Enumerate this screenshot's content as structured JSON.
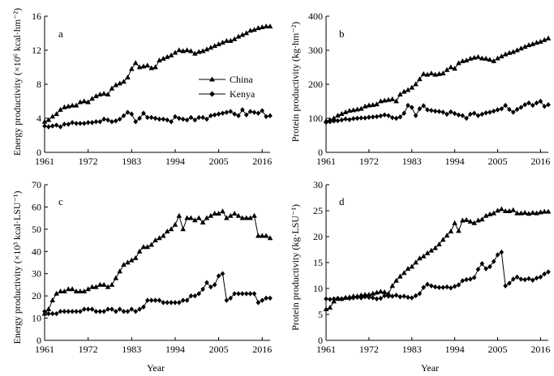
{
  "figure": {
    "x_axis_title": "Year",
    "legend": [
      {
        "label": "China",
        "marker": "triangle"
      },
      {
        "label": "Kenya",
        "marker": "diamond"
      }
    ],
    "x_ticks": [
      "1961",
      "1972",
      "1983",
      "1994",
      "2005",
      "2016"
    ]
  },
  "chart_data": [
    {
      "type": "line",
      "panel": "a",
      "ylabel": "Energy productivity (×10⁶ kcal·hm⁻²)",
      "xlim": [
        1961,
        2018
      ],
      "ylim": [
        0,
        16
      ],
      "yticks": [
        "0",
        "4",
        "8",
        "12",
        "16"
      ],
      "grid": false,
      "legend_position": "middle-right",
      "x": [
        1961,
        1962,
        1963,
        1964,
        1965,
        1966,
        1967,
        1968,
        1969,
        1970,
        1971,
        1972,
        1973,
        1974,
        1975,
        1976,
        1977,
        1978,
        1979,
        1980,
        1981,
        1982,
        1983,
        1984,
        1985,
        1986,
        1987,
        1988,
        1989,
        1990,
        1991,
        1992,
        1993,
        1994,
        1995,
        1996,
        1997,
        1998,
        1999,
        2000,
        2001,
        2002,
        2003,
        2004,
        2005,
        2006,
        2007,
        2008,
        2009,
        2010,
        2011,
        2012,
        2013,
        2014,
        2015,
        2016,
        2017,
        2018
      ],
      "series": [
        {
          "name": "China",
          "values": [
            3.6,
            3.8,
            4.2,
            4.5,
            5.0,
            5.3,
            5.4,
            5.5,
            5.5,
            5.9,
            6.0,
            5.9,
            6.3,
            6.6,
            6.8,
            6.9,
            6.8,
            7.5,
            7.9,
            8.1,
            8.3,
            8.8,
            9.8,
            10.5,
            10.0,
            10.1,
            10.2,
            9.9,
            10.0,
            10.8,
            11.0,
            11.2,
            11.4,
            11.7,
            12.0,
            11.9,
            12.0,
            11.9,
            11.6,
            11.8,
            11.9,
            12.1,
            12.3,
            12.5,
            12.7,
            12.9,
            13.1,
            13.1,
            13.3,
            13.6,
            13.8,
            14.0,
            14.3,
            14.4,
            14.6,
            14.7,
            14.8,
            14.8
          ]
        },
        {
          "name": "Kenya",
          "values": [
            3.1,
            3.0,
            3.1,
            3.2,
            3.0,
            3.3,
            3.3,
            3.5,
            3.4,
            3.4,
            3.4,
            3.5,
            3.5,
            3.6,
            3.6,
            3.9,
            3.8,
            3.6,
            3.7,
            3.9,
            4.3,
            4.7,
            4.5,
            3.6,
            4.0,
            4.6,
            4.1,
            4.1,
            4.0,
            3.9,
            3.9,
            3.8,
            3.6,
            4.2,
            4.0,
            3.9,
            3.8,
            4.1,
            3.8,
            4.1,
            4.1,
            3.9,
            4.3,
            4.4,
            4.5,
            4.6,
            4.7,
            4.8,
            4.5,
            4.3,
            5.0,
            4.4,
            4.8,
            4.7,
            4.6,
            4.9,
            4.2,
            4.3
          ]
        }
      ]
    },
    {
      "type": "line",
      "panel": "b",
      "ylabel": "Protein productivity (kg·hm⁻²)",
      "xlim": [
        1961,
        2018
      ],
      "ylim": [
        0,
        400
      ],
      "yticks": [
        "0",
        "100",
        "200",
        "300",
        "400"
      ],
      "grid": false,
      "x": [
        1961,
        1962,
        1963,
        1964,
        1965,
        1966,
        1967,
        1968,
        1969,
        1970,
        1971,
        1972,
        1973,
        1974,
        1975,
        1976,
        1977,
        1978,
        1979,
        1980,
        1981,
        1982,
        1983,
        1984,
        1985,
        1986,
        1987,
        1988,
        1989,
        1990,
        1991,
        1992,
        1993,
        1994,
        1995,
        1996,
        1997,
        1998,
        1999,
        2000,
        2001,
        2002,
        2003,
        2004,
        2005,
        2006,
        2007,
        2008,
        2009,
        2010,
        2011,
        2012,
        2013,
        2014,
        2015,
        2016,
        2017,
        2018
      ],
      "series": [
        {
          "name": "China",
          "values": [
            92,
            95,
            100,
            108,
            113,
            118,
            122,
            124,
            126,
            128,
            135,
            138,
            139,
            141,
            150,
            152,
            154,
            156,
            150,
            170,
            178,
            183,
            190,
            200,
            215,
            230,
            228,
            232,
            228,
            230,
            232,
            242,
            250,
            246,
            262,
            268,
            270,
            275,
            278,
            280,
            276,
            275,
            272,
            268,
            276,
            282,
            288,
            292,
            295,
            300,
            305,
            310,
            315,
            318,
            322,
            325,
            330,
            335
          ]
        },
        {
          "name": "Kenya",
          "values": [
            88,
            90,
            92,
            93,
            95,
            98,
            96,
            99,
            100,
            101,
            101,
            103,
            104,
            105,
            107,
            110,
            108,
            102,
            100,
            104,
            115,
            138,
            132,
            108,
            128,
            137,
            125,
            123,
            121,
            120,
            118,
            112,
            119,
            114,
            110,
            108,
            100,
            112,
            115,
            108,
            112,
            116,
            118,
            121,
            125,
            128,
            138,
            126,
            118,
            126,
            132,
            140,
            145,
            138,
            145,
            150,
            135,
            140
          ]
        }
      ]
    },
    {
      "type": "line",
      "panel": "c",
      "ylabel": "Energy productivity (×10³ kcal·LSU⁻¹)",
      "xlim": [
        1961,
        2018
      ],
      "ylim": [
        0,
        70
      ],
      "yticks": [
        "0",
        "10",
        "20",
        "30",
        "40",
        "50",
        "60",
        "70"
      ],
      "grid": false,
      "x": [
        1961,
        1962,
        1963,
        1964,
        1965,
        1966,
        1967,
        1968,
        1969,
        1970,
        1971,
        1972,
        1973,
        1974,
        1975,
        1976,
        1977,
        1978,
        1979,
        1980,
        1981,
        1982,
        1983,
        1984,
        1985,
        1986,
        1987,
        1988,
        1989,
        1990,
        1991,
        1992,
        1993,
        1994,
        1995,
        1996,
        1997,
        1998,
        1999,
        2000,
        2001,
        2002,
        2003,
        2004,
        2005,
        2006,
        2007,
        2008,
        2009,
        2010,
        2011,
        2012,
        2013,
        2014,
        2015,
        2016,
        2017,
        2018
      ],
      "series": [
        {
          "name": "China",
          "values": [
            12,
            14,
            18,
            21,
            22,
            22,
            23,
            23,
            22,
            22,
            22,
            23,
            24,
            24,
            25,
            25,
            24,
            25,
            28,
            31,
            34,
            35,
            36,
            37,
            40,
            42,
            42,
            43,
            45,
            46,
            47,
            49,
            50,
            52,
            56,
            50,
            55,
            55,
            54,
            55,
            53,
            55,
            56,
            57,
            57,
            58,
            55,
            56,
            57,
            56,
            55,
            55,
            55,
            56,
            47,
            47,
            47,
            46
          ]
        },
        {
          "name": "Kenya",
          "values": [
            13,
            12,
            12,
            12,
            13,
            13,
            13,
            13,
            13,
            13,
            14,
            14,
            14,
            13,
            13,
            13,
            14,
            14,
            13,
            14,
            13,
            13,
            14,
            13,
            14,
            15,
            18,
            18,
            18,
            18,
            17,
            17,
            17,
            17,
            17,
            18,
            18,
            20,
            20,
            21,
            23,
            26,
            24,
            25,
            29,
            30,
            18,
            19,
            21,
            21,
            21,
            21,
            21,
            21,
            17,
            18,
            19,
            19
          ]
        }
      ]
    },
    {
      "type": "line",
      "panel": "d",
      "ylabel": "Protein productivity (kg·LSU⁻¹)",
      "xlim": [
        1961,
        2018
      ],
      "ylim": [
        0,
        30
      ],
      "yticks": [
        "0",
        "5",
        "10",
        "15",
        "20",
        "25",
        "30"
      ],
      "grid": false,
      "x": [
        1961,
        1962,
        1963,
        1964,
        1965,
        1966,
        1967,
        1968,
        1969,
        1970,
        1971,
        1972,
        1973,
        1974,
        1975,
        1976,
        1977,
        1978,
        1979,
        1980,
        1981,
        1982,
        1983,
        1984,
        1985,
        1986,
        1987,
        1988,
        1989,
        1990,
        1991,
        1992,
        1993,
        1994,
        1995,
        1996,
        1997,
        1998,
        1999,
        2000,
        2001,
        2002,
        2003,
        2004,
        2005,
        2006,
        2007,
        2008,
        2009,
        2010,
        2011,
        2012,
        2013,
        2014,
        2015,
        2016,
        2017,
        2018
      ],
      "series": [
        {
          "name": "China",
          "values": [
            6.0,
            6.3,
            7.5,
            8.0,
            8.0,
            8.2,
            8.3,
            8.5,
            8.5,
            8.7,
            8.8,
            8.8,
            9.0,
            9.2,
            9.4,
            9.3,
            9.0,
            10.5,
            11.5,
            12.3,
            13.0,
            13.8,
            14.2,
            15.0,
            15.8,
            16.2,
            16.8,
            17.3,
            17.8,
            18.5,
            19.4,
            20.2,
            21.0,
            22.6,
            21.1,
            23.1,
            23.2,
            22.9,
            22.6,
            23.1,
            23.3,
            24.0,
            24.3,
            24.5,
            25.0,
            25.3,
            24.9,
            24.9,
            25.1,
            24.5,
            24.5,
            24.6,
            24.4,
            24.6,
            24.5,
            24.7,
            24.8,
            24.8
          ]
        },
        {
          "name": "Kenya",
          "values": [
            8.0,
            7.9,
            8.0,
            8.1,
            8.0,
            8.2,
            8.1,
            8.2,
            8.3,
            8.2,
            8.4,
            8.3,
            8.2,
            8.0,
            8.1,
            8.6,
            8.5,
            8.5,
            8.7,
            8.4,
            8.5,
            8.3,
            8.2,
            8.6,
            9.0,
            10.2,
            10.8,
            10.5,
            10.3,
            10.2,
            10.2,
            10.3,
            10.1,
            10.4,
            10.7,
            11.5,
            11.7,
            11.8,
            12.1,
            13.7,
            14.8,
            13.8,
            14.2,
            15.2,
            16.5,
            17.0,
            10.5,
            11.0,
            11.8,
            12.2,
            11.8,
            11.7,
            11.9,
            11.6,
            12.0,
            12.2,
            12.8,
            13.2
          ]
        }
      ]
    }
  ]
}
